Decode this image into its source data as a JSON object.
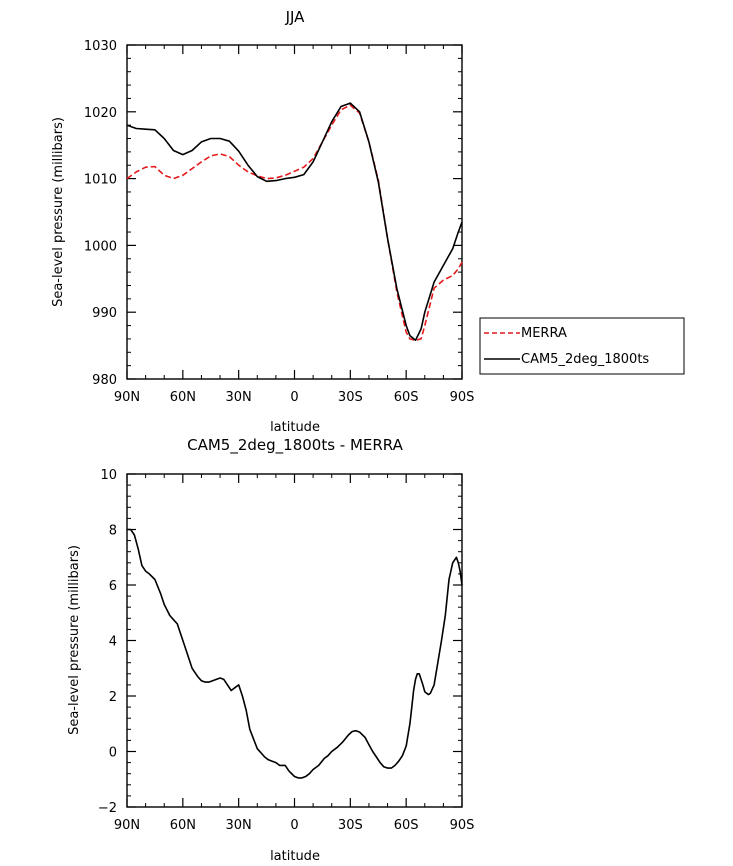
{
  "chart_data": [
    {
      "type": "line",
      "title": "JJA",
      "xlabel": "latitude",
      "ylabel": "Sea-level pressure (millibars)",
      "xlim": [
        -90,
        90
      ],
      "ylim": [
        980,
        1030
      ],
      "x_ticks": [
        -90,
        -60,
        -30,
        0,
        30,
        60,
        90
      ],
      "x_tick_labels": [
        "90N",
        "60N",
        "30N",
        "0",
        "30S",
        "60S",
        "90S"
      ],
      "y_ticks": [
        980,
        990,
        1000,
        1010,
        1020,
        1030
      ],
      "y_tick_labels": [
        "980",
        "990",
        "1000",
        "1010",
        "1020",
        "1030"
      ],
      "legend": [
        "MERRA",
        "CAM5_2deg_1800ts"
      ],
      "series": [
        {
          "name": "MERRA",
          "color": "#e41a1c",
          "dash": "dashed",
          "x": [
            -90,
            -85,
            -80,
            -75,
            -70,
            -65,
            -60,
            -55,
            -50,
            -45,
            -40,
            -35,
            -30,
            -25,
            -20,
            -15,
            -10,
            -5,
            0,
            5,
            10,
            15,
            20,
            25,
            30,
            35,
            40,
            45,
            50,
            55,
            60,
            62,
            65,
            68,
            70,
            75,
            80,
            85,
            88,
            90
          ],
          "y": [
            1010,
            1011,
            1011.7,
            1011.8,
            1010.5,
            1010,
            1010.5,
            1011.5,
            1012.5,
            1013.4,
            1013.7,
            1013.3,
            1012,
            1011,
            1010.4,
            1010,
            1010.1,
            1010.5,
            1011.1,
            1011.7,
            1013,
            1015.5,
            1018,
            1020.3,
            1021,
            1019.8,
            1015.5,
            1009.8,
            1001,
            993,
            987,
            986,
            985.8,
            986,
            988,
            993.6,
            994.8,
            995.5,
            996.5,
            997.5
          ]
        },
        {
          "name": "CAM5_2deg_1800ts",
          "color": "#000000",
          "dash": "solid",
          "x": [
            -90,
            -85,
            -80,
            -75,
            -70,
            -65,
            -60,
            -55,
            -50,
            -45,
            -40,
            -35,
            -30,
            -25,
            -20,
            -15,
            -10,
            -5,
            0,
            5,
            10,
            15,
            20,
            25,
            30,
            35,
            40,
            45,
            50,
            55,
            60,
            62,
            65,
            68,
            70,
            75,
            80,
            85,
            88,
            90
          ],
          "y": [
            1018,
            1017.5,
            1017.4,
            1017.3,
            1016,
            1014.2,
            1013.6,
            1014.2,
            1015.5,
            1016,
            1016,
            1015.6,
            1014.1,
            1012,
            1010.3,
            1009.6,
            1009.7,
            1010,
            1010.2,
            1010.6,
            1012.5,
            1015.5,
            1018.5,
            1020.8,
            1021.3,
            1020,
            1015.5,
            1009.5,
            1001,
            993.5,
            988,
            986.5,
            985.8,
            987.5,
            990,
            994.5,
            997,
            999.5,
            1002,
            1003.5
          ]
        }
      ]
    },
    {
      "type": "line",
      "title": "CAM5_2deg_1800ts - MERRA",
      "xlabel": "latitude",
      "ylabel": "Sea-level pressure (millibars)",
      "xlim": [
        -90,
        90
      ],
      "ylim": [
        -2,
        10
      ],
      "x_ticks": [
        -90,
        -60,
        -30,
        0,
        30,
        60,
        90
      ],
      "x_tick_labels": [
        "90N",
        "60N",
        "30N",
        "0",
        "30S",
        "60S",
        "90S"
      ],
      "y_ticks": [
        -2,
        0,
        2,
        4,
        6,
        8,
        10
      ],
      "y_tick_labels": [
        "−2",
        "0",
        "2",
        "4",
        "6",
        "8",
        "10"
      ],
      "series": [
        {
          "name": "CAM5_2deg_1800ts - MERRA",
          "color": "#000000",
          "dash": "solid",
          "x": [
            -90,
            -88,
            -86,
            -84,
            -82,
            -80,
            -78,
            -75,
            -72,
            -70,
            -67,
            -65,
            -63,
            -61,
            -59,
            -57,
            -55,
            -52,
            -50,
            -48,
            -46,
            -44,
            -42,
            -40,
            -38,
            -36,
            -34,
            -32,
            -30,
            -28,
            -26,
            -24,
            -20,
            -16,
            -14,
            -12,
            -10,
            -8,
            -5,
            -3,
            0,
            2,
            4,
            6,
            8,
            10,
            13,
            16,
            18,
            20,
            23,
            26,
            29,
            31,
            33,
            35,
            38,
            40,
            42,
            44,
            46,
            48,
            50,
            52,
            54,
            56,
            58,
            60,
            62,
            63,
            64,
            65,
            66,
            67,
            68,
            69,
            70,
            71,
            72,
            73,
            75,
            77,
            79,
            81,
            83,
            85,
            86,
            87,
            88,
            89,
            90
          ],
          "y": [
            8,
            8,
            7.8,
            7.3,
            6.7,
            6.5,
            6.4,
            6.2,
            5.7,
            5.3,
            4.9,
            4.75,
            4.6,
            4.2,
            3.8,
            3.4,
            3,
            2.7,
            2.55,
            2.5,
            2.5,
            2.55,
            2.6,
            2.65,
            2.6,
            2.4,
            2.2,
            2.3,
            2.4,
            2.0,
            1.5,
            0.8,
            0.1,
            -0.2,
            -0.3,
            -0.35,
            -0.4,
            -0.5,
            -0.5,
            -0.7,
            -0.9,
            -0.95,
            -0.95,
            -0.9,
            -0.8,
            -0.65,
            -0.5,
            -0.25,
            -0.15,
            0,
            0.15,
            0.35,
            0.6,
            0.72,
            0.75,
            0.7,
            0.5,
            0.25,
            0,
            -0.2,
            -0.4,
            -0.55,
            -0.6,
            -0.6,
            -0.5,
            -0.35,
            -0.15,
            0.2,
            1,
            1.6,
            2.2,
            2.6,
            2.8,
            2.8,
            2.6,
            2.4,
            2.15,
            2.1,
            2.05,
            2.1,
            2.4,
            3.2,
            4,
            4.9,
            6.2,
            6.8,
            6.9,
            7,
            6.8,
            6.5,
            6
          ]
        }
      ]
    }
  ]
}
